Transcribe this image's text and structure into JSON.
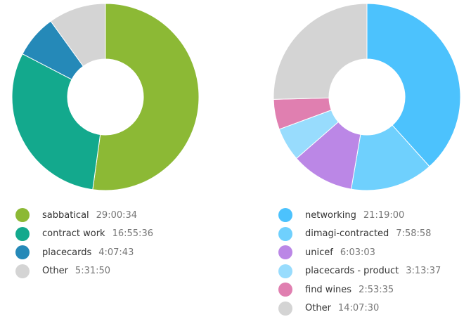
{
  "chart_data": [
    {
      "type": "pie",
      "style": "donut",
      "categories": [
        "sabbatical",
        "contract work",
        "placecards",
        "Other"
      ],
      "values": [
        29.0094,
        16.9267,
        4.1286,
        5.5306
      ],
      "labels": [
        "29:00:34",
        "16:55:36",
        "4:07:43",
        "5:31:50"
      ],
      "colors": [
        "#8cb935",
        "#13a98d",
        "#2589b8",
        "#d4d4d4"
      ],
      "legend_position": "bottom"
    },
    {
      "type": "pie",
      "style": "donut",
      "categories": [
        "networking",
        "dimagi-contracted",
        "unicef",
        "placecards - product",
        "find wines",
        "Other"
      ],
      "values": [
        21.3164,
        7.9828,
        6.0508,
        3.2269,
        2.8931,
        14.125
      ],
      "labels": [
        "21:19:00",
        "7:58:58",
        "6:03:03",
        "3:13:37",
        "2:53:35",
        "14:07:30"
      ],
      "colors": [
        "#4cc2fd",
        "#6fd0fd",
        "#bb87e6",
        "#98dcfd",
        "#e07fb0",
        "#d4d4d4"
      ],
      "legend_position": "bottom"
    }
  ]
}
